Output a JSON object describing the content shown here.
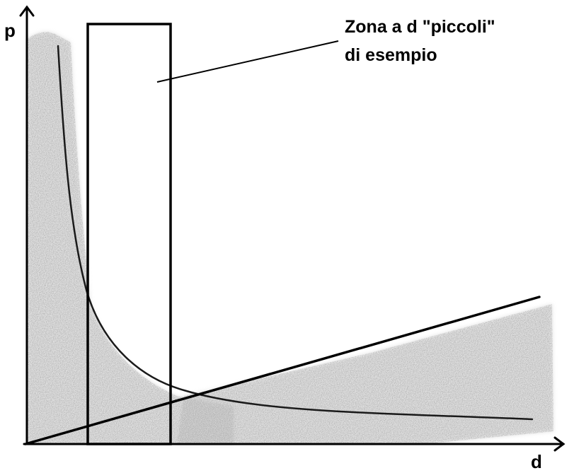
{
  "axes": {
    "y_label": "p",
    "x_label": "d"
  },
  "annotation": {
    "line1": "Zona a d \"piccoli\"",
    "line2": "di esempio"
  },
  "colors": {
    "ink": "#000000",
    "shade": "#a6a6a6",
    "background": "#ffffff"
  }
}
